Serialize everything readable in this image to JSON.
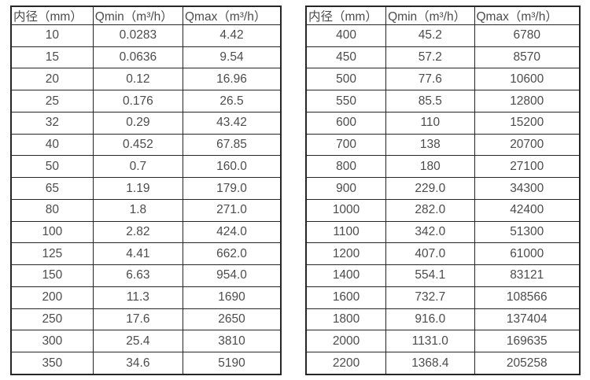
{
  "page": {
    "background_color": "#ffffff",
    "text_color": "#4c4c4c",
    "border_color": "#262626"
  },
  "tables": [
    {
      "name": "small-diameters",
      "headers": [
        "内径（mm）",
        "Qmin（m³/h）",
        "Qmax（m³/h）"
      ],
      "rows": [
        [
          "10",
          "0.0283",
          "4.42"
        ],
        [
          "15",
          "0.0636",
          "9.54"
        ],
        [
          "20",
          "0.12",
          "16.96"
        ],
        [
          "25",
          "0.176",
          "26.5"
        ],
        [
          "32",
          "0.29",
          "43.42"
        ],
        [
          "40",
          "0.452",
          "67.85"
        ],
        [
          "50",
          "0.7",
          "160.0"
        ],
        [
          "65",
          "1.19",
          "179.0"
        ],
        [
          "80",
          "1.8",
          "271.0"
        ],
        [
          "100",
          "2.82",
          "424.0"
        ],
        [
          "125",
          "4.41",
          "662.0"
        ],
        [
          "150",
          "6.63",
          "954.0"
        ],
        [
          "200",
          "11.3",
          "1690"
        ],
        [
          "250",
          "17.6",
          "2650"
        ],
        [
          "300",
          "25.4",
          "3810"
        ],
        [
          "350",
          "34.6",
          "5190"
        ]
      ]
    },
    {
      "name": "large-diameters",
      "headers": [
        "内径（mm）",
        "Qmin（m³/h）",
        "Qmax（m³/h）"
      ],
      "rows": [
        [
          "400",
          "45.2",
          "6780"
        ],
        [
          "450",
          "57.2",
          "8570"
        ],
        [
          "500",
          "77.6",
          "10600"
        ],
        [
          "550",
          "85.5",
          "12800"
        ],
        [
          "600",
          "110",
          "15200"
        ],
        [
          "700",
          "138",
          "20700"
        ],
        [
          "800",
          "180",
          "27100"
        ],
        [
          "900",
          "229.0",
          "34300"
        ],
        [
          "1000",
          "282.0",
          "42400"
        ],
        [
          "1100",
          "342.0",
          "51300"
        ],
        [
          "1200",
          "407.0",
          "61000"
        ],
        [
          "1400",
          "554.1",
          "83121"
        ],
        [
          "1600",
          "732.7",
          "108566"
        ],
        [
          "1800",
          "916.0",
          "137404"
        ],
        [
          "2000",
          "1131.0",
          "169635"
        ],
        [
          "2200",
          "1368.4",
          "205258"
        ]
      ]
    }
  ]
}
